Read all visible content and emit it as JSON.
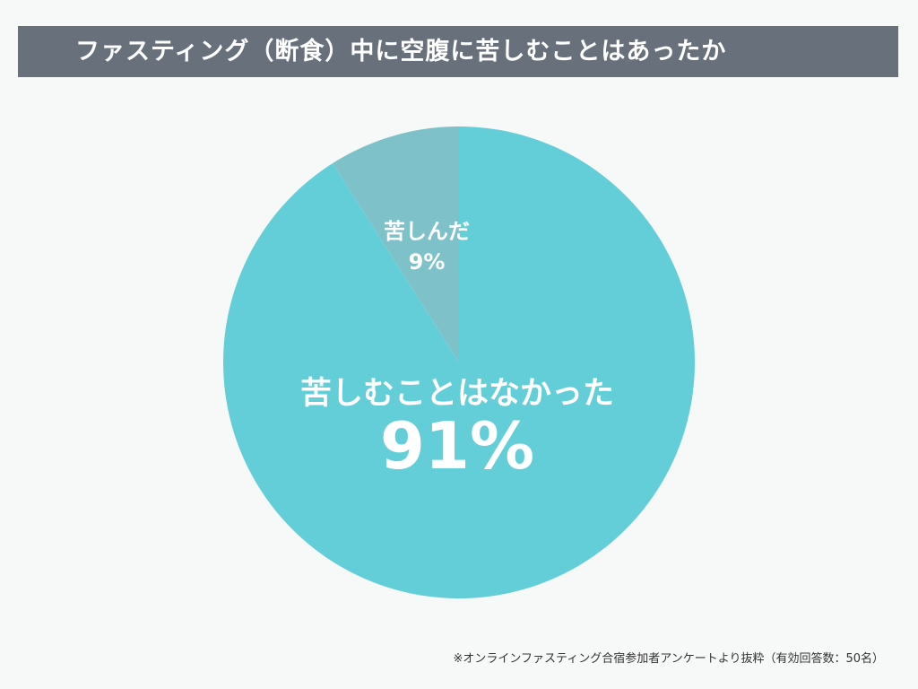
{
  "title": "ファスティング（断食）中に空腹に苦しむことはあったか",
  "footnote": "※オンラインファスティング合宿参加者アンケートより抜粋（有効回答数：50名）",
  "colors": {
    "background": "#f7f8f8",
    "title_bar": "#68717b",
    "slice_not_suffered": "#64ced8",
    "slice_suffered": "#7fc1c8"
  },
  "chart_data": {
    "type": "pie",
    "title": "ファスティング（断食）中に空腹に苦しむことはあったか",
    "slices": [
      {
        "label": "苦しんだ",
        "value": 9,
        "value_label": "9%",
        "color": "#7fc1c8"
      },
      {
        "label": "苦しむことはなかった",
        "value": 91,
        "value_label": "91%",
        "color": "#64ced8"
      }
    ],
    "start_angle": "12 o'clock, counter-clockwise for first slice",
    "legend": "none (labels on slices)"
  }
}
